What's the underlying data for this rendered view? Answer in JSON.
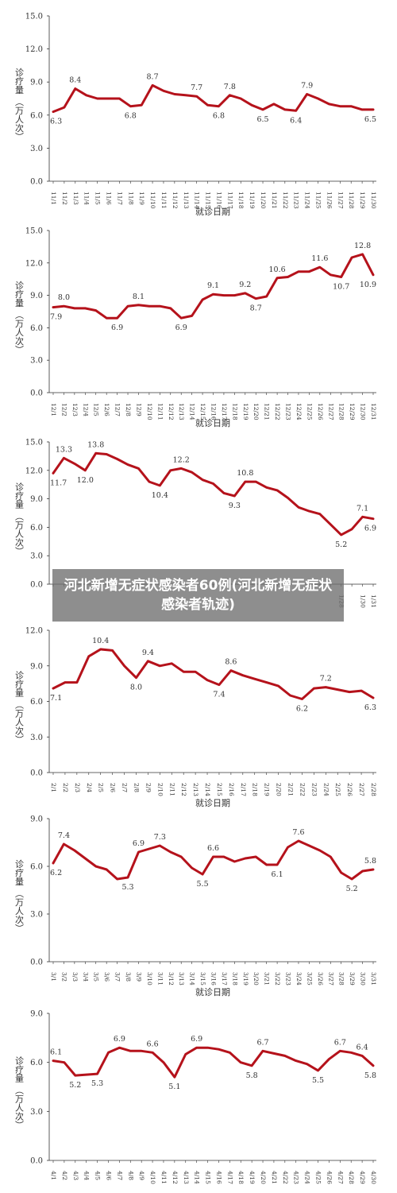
{
  "banner": {
    "title": "河北新增无症状感染者60例(河北新增无症状感染者轨迹)"
  },
  "colors": {
    "line": "#b5121b",
    "axis": "#333333",
    "text": "#333333"
  },
  "chart_data": [
    {
      "type": "line",
      "ylabel_main": "诊疗量",
      "ylabel_unit": "（万人次）",
      "xlabel": "就诊日期",
      "ylim": [
        0,
        15
      ],
      "yticks": [
        "0.0",
        "3.0",
        "6.0",
        "9.0",
        "12.0",
        "15.0"
      ],
      "categories": [
        "11/1",
        "11/2",
        "11/3",
        "11/4",
        "11/5",
        "11/6",
        "11/7",
        "11/8",
        "11/9",
        "11/10",
        "11/11",
        "11/12",
        "11/13",
        "11/14",
        "11/15",
        "11/16",
        "11/17",
        "11/18",
        "11/19",
        "11/20",
        "11/21",
        "11/22",
        "11/23",
        "11/24",
        "11/25",
        "11/26",
        "11/27",
        "11/28",
        "11/29",
        "11/30"
      ],
      "values": [
        6.3,
        6.7,
        8.4,
        7.8,
        7.5,
        7.5,
        7.5,
        6.8,
        6.9,
        8.7,
        8.2,
        7.9,
        7.8,
        7.7,
        6.9,
        6.8,
        7.8,
        7.5,
        6.9,
        6.5,
        7.0,
        6.5,
        6.4,
        7.9,
        7.5,
        7.0,
        6.8,
        6.8,
        6.5,
        6.5
      ],
      "point_labels": [
        {
          "i": 0,
          "text": "6.3",
          "pos": "below"
        },
        {
          "i": 2,
          "text": "8.4",
          "pos": "above"
        },
        {
          "i": 7,
          "text": "6.8",
          "pos": "below"
        },
        {
          "i": 9,
          "text": "8.7",
          "pos": "above"
        },
        {
          "i": 13,
          "text": "7.7",
          "pos": "above"
        },
        {
          "i": 15,
          "text": "6.8",
          "pos": "below"
        },
        {
          "i": 16,
          "text": "7.8",
          "pos": "above"
        },
        {
          "i": 19,
          "text": "6.5",
          "pos": "below"
        },
        {
          "i": 22,
          "text": "6.4",
          "pos": "below"
        },
        {
          "i": 23,
          "text": "7.9",
          "pos": "above"
        },
        {
          "i": 29,
          "text": "6.5",
          "pos": "below"
        }
      ]
    },
    {
      "type": "line",
      "ylabel_main": "诊疗量",
      "ylabel_unit": "（万人次）",
      "xlabel": "就诊日期",
      "ylim": [
        0,
        15
      ],
      "yticks": [
        "0.0",
        "3.0",
        "6.0",
        "9.0",
        "12.0",
        "15.0"
      ],
      "categories": [
        "12/1",
        "12/2",
        "12/3",
        "12/4",
        "12/5",
        "12/6",
        "12/7",
        "12/8",
        "12/9",
        "12/10",
        "12/11",
        "12/12",
        "12/13",
        "12/14",
        "12/15",
        "12/16",
        "12/17",
        "12/18",
        "12/19",
        "12/20",
        "12/21",
        "12/22",
        "12/23",
        "12/24",
        "12/25",
        "12/26",
        "12/27",
        "12/28",
        "12/29",
        "12/30",
        "12/31"
      ],
      "values": [
        7.9,
        8.0,
        7.8,
        7.8,
        7.6,
        6.9,
        6.9,
        8.0,
        8.1,
        8.0,
        8.0,
        7.8,
        6.9,
        7.1,
        8.6,
        9.1,
        9.0,
        9.0,
        9.2,
        8.7,
        8.9,
        10.6,
        10.7,
        11.2,
        11.2,
        11.6,
        10.9,
        10.7,
        12.5,
        12.8,
        10.9
      ],
      "point_labels": [
        {
          "i": 0,
          "text": "7.9",
          "pos": "below"
        },
        {
          "i": 1,
          "text": "8.0",
          "pos": "above"
        },
        {
          "i": 6,
          "text": "6.9",
          "pos": "below"
        },
        {
          "i": 8,
          "text": "8.1",
          "pos": "above"
        },
        {
          "i": 12,
          "text": "6.9",
          "pos": "below"
        },
        {
          "i": 15,
          "text": "9.1",
          "pos": "above"
        },
        {
          "i": 18,
          "text": "9.2",
          "pos": "above"
        },
        {
          "i": 19,
          "text": "8.7",
          "pos": "below"
        },
        {
          "i": 21,
          "text": "10.6",
          "pos": "above"
        },
        {
          "i": 25,
          "text": "11.6",
          "pos": "above"
        },
        {
          "i": 27,
          "text": "10.7",
          "pos": "below"
        },
        {
          "i": 29,
          "text": "12.8",
          "pos": "above"
        },
        {
          "i": 30,
          "text": "10.9",
          "pos": "below"
        }
      ]
    },
    {
      "type": "line",
      "ylabel_main": "诊疗量",
      "ylabel_unit": "（万人次）",
      "xlabel": "",
      "ylim": [
        0,
        15
      ],
      "yticks": [
        "0.0",
        "3.0",
        "6.0",
        "9.0",
        "12.0",
        "15.0"
      ],
      "categories": [
        "",
        "",
        "",
        "",
        "",
        "",
        "",
        "",
        "",
        "",
        "",
        "",
        "",
        "",
        "",
        "",
        "",
        "",
        "",
        "",
        "",
        "",
        "",
        "",
        "",
        "",
        "",
        "1/28",
        "",
        "1/30",
        "1/31"
      ],
      "values": [
        11.7,
        13.3,
        12.7,
        12.0,
        13.8,
        13.7,
        13.2,
        12.6,
        12.2,
        10.8,
        10.4,
        12.0,
        12.2,
        11.8,
        11.0,
        10.6,
        9.6,
        9.3,
        10.8,
        10.8,
        10.2,
        9.9,
        9.1,
        8.1,
        7.7,
        7.4,
        6.3,
        5.2,
        5.8,
        7.1,
        6.9
      ],
      "point_labels": [
        {
          "i": 0,
          "text": "11.7",
          "pos": "below"
        },
        {
          "i": 1,
          "text": "13.3",
          "pos": "above"
        },
        {
          "i": 3,
          "text": "12.0",
          "pos": "below"
        },
        {
          "i": 4,
          "text": "13.8",
          "pos": "above"
        },
        {
          "i": 10,
          "text": "10.4",
          "pos": "below"
        },
        {
          "i": 12,
          "text": "12.2",
          "pos": "above"
        },
        {
          "i": 17,
          "text": "9.3",
          "pos": "below"
        },
        {
          "i": 18,
          "text": "10.8",
          "pos": "above"
        },
        {
          "i": 27,
          "text": "5.2",
          "pos": "below"
        },
        {
          "i": 29,
          "text": "7.1",
          "pos": "above"
        },
        {
          "i": 30,
          "text": "6.9",
          "pos": "below"
        }
      ]
    },
    {
      "type": "line",
      "ylabel_main": "诊疗量",
      "ylabel_unit": "（万人次）",
      "xlabel": "就诊日期",
      "ylim": [
        0,
        12
      ],
      "yticks": [
        "0.0",
        "3.0",
        "6.0",
        "9.0",
        "12.0"
      ],
      "categories": [
        "2/1",
        "2/2",
        "2/3",
        "2/4",
        "2/5",
        "2/6",
        "2/7",
        "2/8",
        "2/9",
        "2/10",
        "2/11",
        "2/12",
        "2/13",
        "2/14",
        "2/15",
        "2/16",
        "2/17",
        "2/18",
        "2/19",
        "2/20",
        "2/21",
        "2/22",
        "2/23",
        "2/24",
        "2/25",
        "2/26",
        "2/27",
        "2/28"
      ],
      "values": [
        7.1,
        7.6,
        7.6,
        9.8,
        10.4,
        10.3,
        9.0,
        8.0,
        9.4,
        9.0,
        9.2,
        8.5,
        8.5,
        7.8,
        7.4,
        8.6,
        8.2,
        7.9,
        7.6,
        7.3,
        6.5,
        6.2,
        7.1,
        7.2,
        7.0,
        6.8,
        6.9,
        6.3
      ],
      "point_labels": [
        {
          "i": 0,
          "text": "7.1",
          "pos": "below"
        },
        {
          "i": 4,
          "text": "10.4",
          "pos": "above"
        },
        {
          "i": 7,
          "text": "8.0",
          "pos": "below"
        },
        {
          "i": 8,
          "text": "9.4",
          "pos": "above"
        },
        {
          "i": 14,
          "text": "7.4",
          "pos": "below"
        },
        {
          "i": 15,
          "text": "8.6",
          "pos": "above"
        },
        {
          "i": 21,
          "text": "6.2",
          "pos": "below"
        },
        {
          "i": 23,
          "text": "7.2",
          "pos": "above"
        },
        {
          "i": 27,
          "text": "6.3",
          "pos": "below"
        }
      ]
    },
    {
      "type": "line",
      "ylabel_main": "诊疗量",
      "ylabel_unit": "（万人次）",
      "xlabel": "就诊日期",
      "ylim": [
        0,
        9
      ],
      "yticks": [
        "0.0",
        "3.0",
        "6.0",
        "9.0"
      ],
      "categories": [
        "3/1",
        "3/2",
        "3/3",
        "3/4",
        "3/5",
        "3/6",
        "3/7",
        "3/8",
        "3/9",
        "3/10",
        "3/11",
        "3/12",
        "3/13",
        "3/14",
        "3/15",
        "3/16",
        "3/17",
        "3/18",
        "3/19",
        "3/20",
        "3/21",
        "3/22",
        "3/23",
        "3/24",
        "3/25",
        "3/26",
        "3/27",
        "3/28",
        "3/29",
        "3/30",
        "3/31"
      ],
      "values": [
        6.2,
        7.4,
        7.0,
        6.5,
        6.0,
        5.8,
        5.2,
        5.3,
        6.9,
        7.1,
        7.3,
        6.9,
        6.6,
        5.9,
        5.5,
        6.6,
        6.6,
        6.3,
        6.5,
        6.6,
        6.1,
        6.1,
        7.2,
        7.6,
        7.3,
        7.0,
        6.6,
        5.6,
        5.2,
        5.7,
        5.8
      ],
      "point_labels": [
        {
          "i": 0,
          "text": "6.2",
          "pos": "below"
        },
        {
          "i": 1,
          "text": "7.4",
          "pos": "above"
        },
        {
          "i": 7,
          "text": "5.3",
          "pos": "below"
        },
        {
          "i": 8,
          "text": "6.9",
          "pos": "above"
        },
        {
          "i": 10,
          "text": "7.3",
          "pos": "above"
        },
        {
          "i": 14,
          "text": "5.5",
          "pos": "below"
        },
        {
          "i": 15,
          "text": "6.6",
          "pos": "above"
        },
        {
          "i": 21,
          "text": "6.1",
          "pos": "below"
        },
        {
          "i": 23,
          "text": "7.6",
          "pos": "above"
        },
        {
          "i": 28,
          "text": "5.2",
          "pos": "below"
        },
        {
          "i": 30,
          "text": "5.8",
          "pos": "above"
        }
      ]
    },
    {
      "type": "line",
      "ylabel_main": "诊疗量",
      "ylabel_unit": "（万人次）",
      "xlabel": "",
      "ylim": [
        0,
        9
      ],
      "yticks": [
        "0.0",
        "3.0",
        "6.0",
        "9.0"
      ],
      "categories": [
        "4/1",
        "4/2",
        "4/3",
        "4/4",
        "4/5",
        "4/6",
        "4/7",
        "4/8",
        "4/9",
        "4/10",
        "4/11",
        "4/12",
        "4/13",
        "4/14",
        "4/15",
        "4/16",
        "4/17",
        "4/18",
        "4/19",
        "4/20",
        "4/21",
        "4/22",
        "4/23",
        "4/24",
        "4/25",
        "4/26",
        "4/27",
        "4/28",
        "4/29",
        "4/30"
      ],
      "values": [
        6.1,
        6.0,
        5.2,
        5.25,
        5.3,
        6.6,
        6.9,
        6.7,
        6.7,
        6.6,
        6.0,
        5.1,
        6.5,
        6.9,
        6.9,
        6.8,
        6.6,
        6.0,
        5.8,
        6.7,
        6.55,
        6.4,
        6.1,
        5.9,
        5.5,
        6.2,
        6.7,
        6.6,
        6.4,
        5.8
      ],
      "point_labels": [
        {
          "i": 0,
          "text": "6.1",
          "pos": "above"
        },
        {
          "i": 2,
          "text": "5.2",
          "pos": "below"
        },
        {
          "i": 4,
          "text": "5.3",
          "pos": "below"
        },
        {
          "i": 6,
          "text": "6.9",
          "pos": "above"
        },
        {
          "i": 9,
          "text": "6.6",
          "pos": "above"
        },
        {
          "i": 11,
          "text": "5.1",
          "pos": "below"
        },
        {
          "i": 13,
          "text": "6.9",
          "pos": "above"
        },
        {
          "i": 18,
          "text": "5.8",
          "pos": "below"
        },
        {
          "i": 19,
          "text": "6.7",
          "pos": "above"
        },
        {
          "i": 24,
          "text": "5.5",
          "pos": "below"
        },
        {
          "i": 26,
          "text": "6.7",
          "pos": "above"
        },
        {
          "i": 28,
          "text": "6.4",
          "pos": "above"
        },
        {
          "i": 29,
          "text": "5.8",
          "pos": "below"
        }
      ]
    }
  ]
}
